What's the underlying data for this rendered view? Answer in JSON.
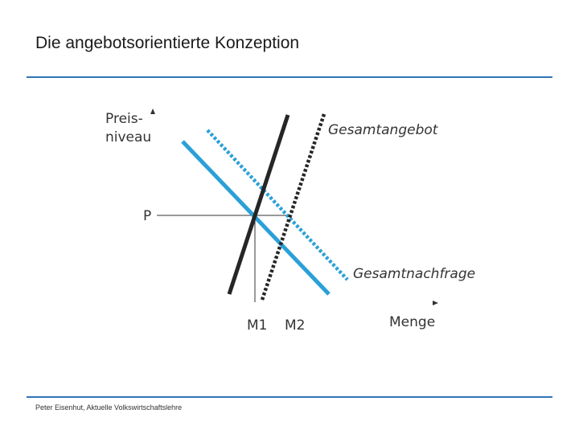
{
  "slide": {
    "title": "Die angebotsorientierte Konzeption",
    "footer": "Peter Eisenhut, Aktuelle Volkswirtschaftslehre"
  },
  "diagram": {
    "y_axis_label_line1": "Preis-",
    "y_axis_label_line2": "niveau",
    "x_axis_label": "Menge",
    "price_label": "P",
    "m1_label": "M1",
    "m2_label": "M2",
    "supply_label": "Gesamtangebot",
    "demand_label": "Gesamtnachfrage",
    "colors": {
      "supply": "#262626",
      "demand": "#2aa0d8",
      "rule": "#2e75b6",
      "text": "#333333"
    }
  }
}
